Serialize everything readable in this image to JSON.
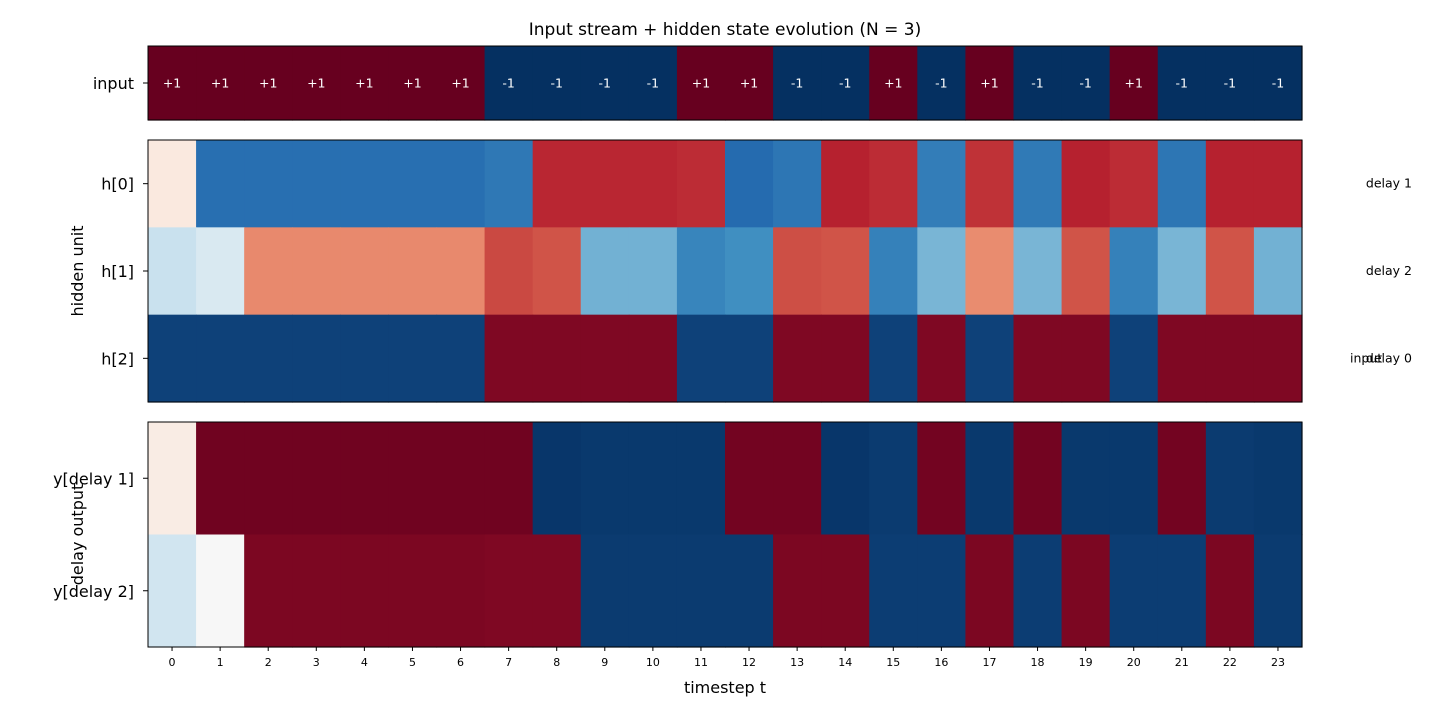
{
  "chart_data": {
    "type": "heatmap",
    "title": "Input stream + hidden state evolution (N = 3)",
    "xlabel": "timestep t",
    "x": [
      0,
      1,
      2,
      3,
      4,
      5,
      6,
      7,
      8,
      9,
      10,
      11,
      12,
      13,
      14,
      15,
      16,
      17,
      18,
      19,
      20,
      21,
      22,
      23
    ],
    "colormap": "RdBu_r",
    "panels": [
      {
        "name": "input",
        "ylabel": "",
        "rows": [
          "input"
        ],
        "values": [
          [
            1,
            1,
            1,
            1,
            1,
            1,
            1,
            -1,
            -1,
            -1,
            -1,
            1,
            1,
            -1,
            -1,
            1,
            -1,
            1,
            -1,
            -1,
            1,
            -1,
            -1,
            -1
          ]
        ],
        "cell_labels": [
          [
            "+1",
            "+1",
            "+1",
            "+1",
            "+1",
            "+1",
            "+1",
            "-1",
            "-1",
            "-1",
            "-1",
            "+1",
            "+1",
            "-1",
            "-1",
            "+1",
            "-1",
            "+1",
            "-1",
            "-1",
            "+1",
            "-1",
            "-1",
            "-1"
          ]
        ]
      },
      {
        "name": "hidden",
        "ylabel": "hidden unit",
        "rows": [
          "h[0]",
          "h[1]",
          "h[2]"
        ],
        "values": [
          [
            0.05,
            -0.7,
            -0.7,
            -0.7,
            -0.7,
            -0.7,
            -0.7,
            -0.65,
            0.7,
            0.7,
            0.7,
            0.68,
            -0.72,
            -0.66,
            0.72,
            0.68,
            -0.62,
            0.66,
            -0.64,
            0.72,
            0.68,
            -0.66,
            0.72,
            0.72
          ],
          [
            -0.12,
            -0.08,
            0.35,
            0.35,
            0.35,
            0.35,
            0.35,
            0.58,
            0.54,
            -0.35,
            -0.35,
            -0.58,
            -0.52,
            0.56,
            0.54,
            -0.6,
            -0.33,
            0.34,
            -0.33,
            0.54,
            -0.6,
            -0.33,
            0.54,
            -0.35
          ],
          [
            -0.92,
            -0.92,
            -0.92,
            -0.92,
            -0.92,
            -0.92,
            -0.92,
            0.92,
            0.92,
            0.92,
            0.92,
            -0.92,
            -0.92,
            0.92,
            0.92,
            -0.92,
            0.92,
            -0.92,
            0.92,
            0.92,
            -0.92,
            0.92,
            0.92,
            0.92
          ]
        ],
        "row_annotations": [
          "delay 1",
          "delay 2",
          "delay 0"
        ],
        "overlapping_annotation": "input"
      },
      {
        "name": "output",
        "ylabel": "delay output",
        "rows": [
          "y[delay 1]",
          "y[delay 2]"
        ],
        "values": [
          [
            0.04,
            0.97,
            0.97,
            0.97,
            0.97,
            0.97,
            0.97,
            0.97,
            -0.97,
            -0.96,
            -0.96,
            -0.96,
            0.96,
            0.96,
            -0.97,
            -0.95,
            0.96,
            -0.96,
            0.96,
            -0.96,
            -0.96,
            0.96,
            -0.95,
            -0.96
          ],
          [
            -0.1,
            0.0,
            0.93,
            0.93,
            0.93,
            0.93,
            0.93,
            0.92,
            0.92,
            -0.95,
            -0.95,
            -0.95,
            -0.95,
            0.93,
            0.93,
            -0.94,
            -0.94,
            0.93,
            -0.94,
            0.93,
            -0.94,
            -0.94,
            0.93,
            -0.95
          ]
        ]
      }
    ]
  }
}
